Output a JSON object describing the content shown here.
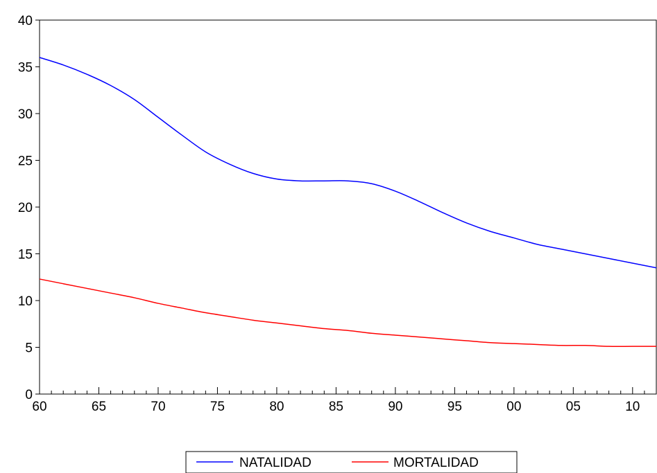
{
  "chart_data": {
    "type": "line",
    "title": "",
    "xlabel": "",
    "ylabel": "",
    "x": [
      1960,
      1962,
      1964,
      1966,
      1968,
      1970,
      1972,
      1974,
      1976,
      1978,
      1980,
      1982,
      1984,
      1986,
      1988,
      1990,
      1992,
      1994,
      1996,
      1998,
      2000,
      2002,
      2004,
      2006,
      2008,
      2010,
      2012
    ],
    "xlim": [
      1960,
      2012
    ],
    "ylim": [
      0,
      40
    ],
    "y_ticks": [
      "0",
      "5",
      "10",
      "15",
      "20",
      "25",
      "30",
      "35",
      "40"
    ],
    "x_ticks": [
      "60",
      "65",
      "70",
      "75",
      "80",
      "85",
      "90",
      "95",
      "00",
      "05",
      "10"
    ],
    "grid": false,
    "legend_position": "bottom",
    "series": [
      {
        "name": "NATALIDAD",
        "color": "#0000ff",
        "values": [
          36.0,
          35.2,
          34.2,
          33.0,
          31.5,
          29.6,
          27.7,
          25.9,
          24.6,
          23.6,
          23.0,
          22.8,
          22.8,
          22.8,
          22.5,
          21.7,
          20.6,
          19.4,
          18.3,
          17.4,
          16.7,
          16.0,
          15.5,
          15.0,
          14.5,
          14.0,
          13.5
        ]
      },
      {
        "name": "MORTALIDAD",
        "color": "#ff0000",
        "values": [
          12.3,
          11.8,
          11.3,
          10.8,
          10.3,
          9.7,
          9.2,
          8.7,
          8.3,
          7.9,
          7.6,
          7.3,
          7.0,
          6.8,
          6.5,
          6.3,
          6.1,
          5.9,
          5.7,
          5.5,
          5.4,
          5.3,
          5.2,
          5.2,
          5.1,
          5.1,
          5.1
        ]
      }
    ]
  }
}
